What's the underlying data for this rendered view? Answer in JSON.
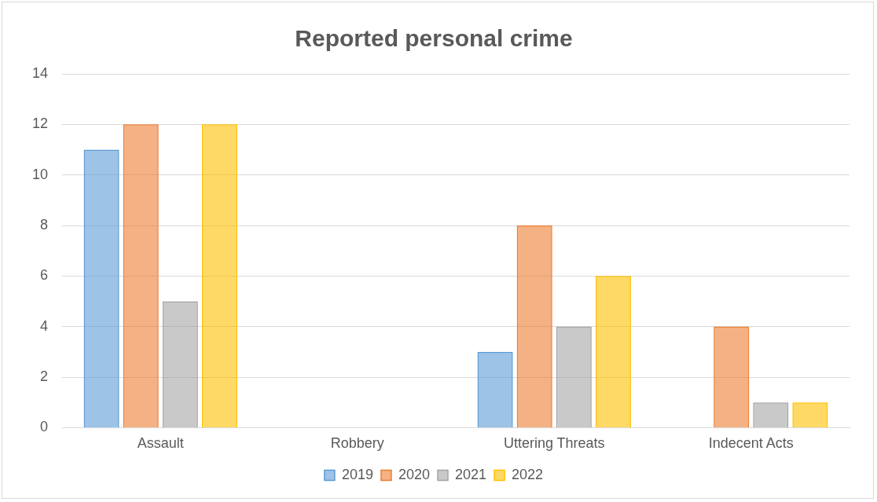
{
  "chart_data": {
    "type": "bar",
    "title": "Reported personal crime",
    "categories": [
      "Assault",
      "Robbery",
      "Uttering Threats",
      "Indecent Acts"
    ],
    "series": [
      {
        "name": "2019",
        "color": "#5b9bd5",
        "values": [
          11,
          0,
          3,
          0
        ]
      },
      {
        "name": "2020",
        "color": "#ed7d31",
        "values": [
          12,
          0,
          8,
          4
        ]
      },
      {
        "name": "2021",
        "color": "#a5a5a5",
        "values": [
          5,
          0,
          4,
          1
        ]
      },
      {
        "name": "2022",
        "color": "#ffc000",
        "values": [
          12,
          0,
          6,
          1
        ]
      }
    ],
    "ylim": [
      0,
      14
    ],
    "yticks": [
      0,
      2,
      4,
      6,
      8,
      10,
      12,
      14
    ],
    "grid": "y",
    "legend": "bottom"
  }
}
